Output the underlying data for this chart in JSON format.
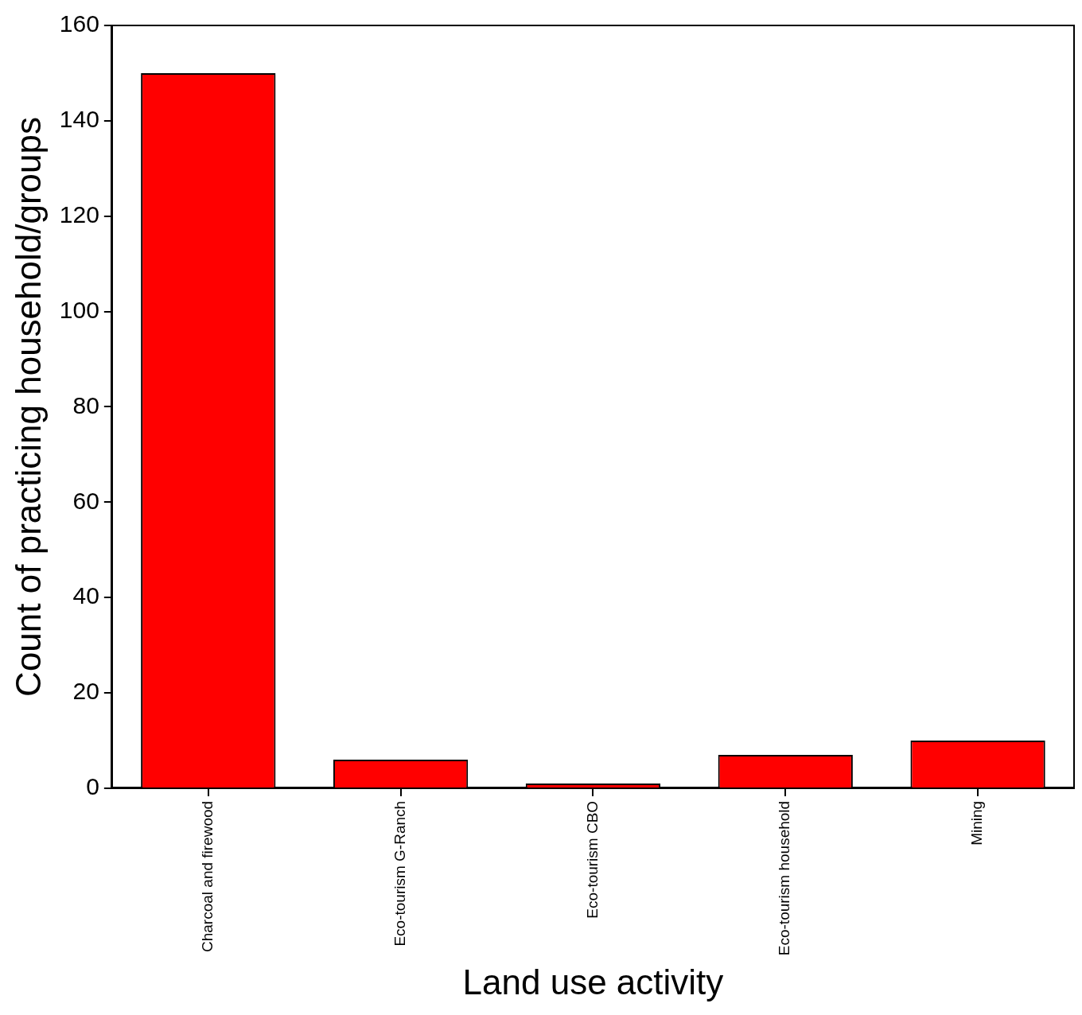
{
  "chart_data": {
    "type": "bar",
    "xlabel": "Land use activity",
    "ylabel": "Count of practicing household/groups",
    "categories": [
      "Charcoal and firewood",
      "Eco-tourism G-Ranch",
      "Eco-tourism CBO",
      "Eco-tourism household",
      "Mining"
    ],
    "values": [
      150,
      6,
      1,
      7,
      10
    ],
    "color": "#ff0000",
    "ylim": [
      0,
      160
    ],
    "yticks": [
      0,
      20,
      40,
      60,
      80,
      100,
      120,
      140,
      160
    ],
    "grid": false,
    "legend": false
  }
}
